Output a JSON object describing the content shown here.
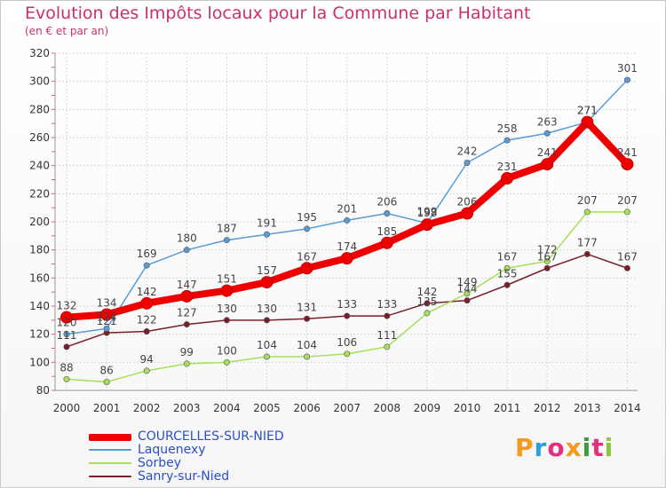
{
  "header": {
    "title": "Evolution des Impôts locaux pour la Commune par Habitant",
    "subtitle": "(en € et par an)"
  },
  "brand": {
    "logo_text": "Proxiti",
    "colors": [
      "#f39a1e",
      "#2a9fd8",
      "#e2307e",
      "#f39a1e",
      "#3e9a3c",
      "#e2307e",
      "#8cc63f"
    ]
  },
  "chart_data": {
    "type": "line",
    "title": "Evolution des Impôts locaux pour la Commune par Habitant",
    "subtitle": "(en € et par an)",
    "x": [
      "2000",
      "2001",
      "2002",
      "2003",
      "2004",
      "2005",
      "2006",
      "2007",
      "2008",
      "2009",
      "2010",
      "2011",
      "2012",
      "2013",
      "2014"
    ],
    "ylim": [
      80,
      320
    ],
    "yticks": [
      80,
      100,
      120,
      140,
      160,
      180,
      200,
      220,
      240,
      260,
      280,
      300,
      320
    ],
    "grid": true,
    "legend_position": "bottom-left",
    "series": [
      {
        "name": "COURCELLES-SUR-NIED",
        "color": "#ee0000",
        "values": [
          132,
          134,
          142,
          147,
          151,
          157,
          167,
          174,
          185,
          198,
          206,
          231,
          241,
          271,
          241
        ]
      },
      {
        "name": "Laquenexy",
        "color": "#5b9bd5",
        "values": [
          120,
          124,
          169,
          180,
          187,
          191,
          195,
          201,
          206,
          199,
          242,
          258,
          263,
          271,
          301
        ]
      },
      {
        "name": "Sorbey",
        "color": "#a6e05a",
        "values": [
          88,
          86,
          94,
          99,
          100,
          104,
          104,
          106,
          111,
          135,
          149,
          167,
          172,
          207,
          207
        ]
      },
      {
        "name": "Sanry-sur-Nied",
        "color": "#7a1f2a",
        "values": [
          111,
          121,
          122,
          127,
          130,
          130,
          131,
          133,
          133,
          142,
          144,
          155,
          167,
          177,
          167
        ]
      }
    ]
  }
}
